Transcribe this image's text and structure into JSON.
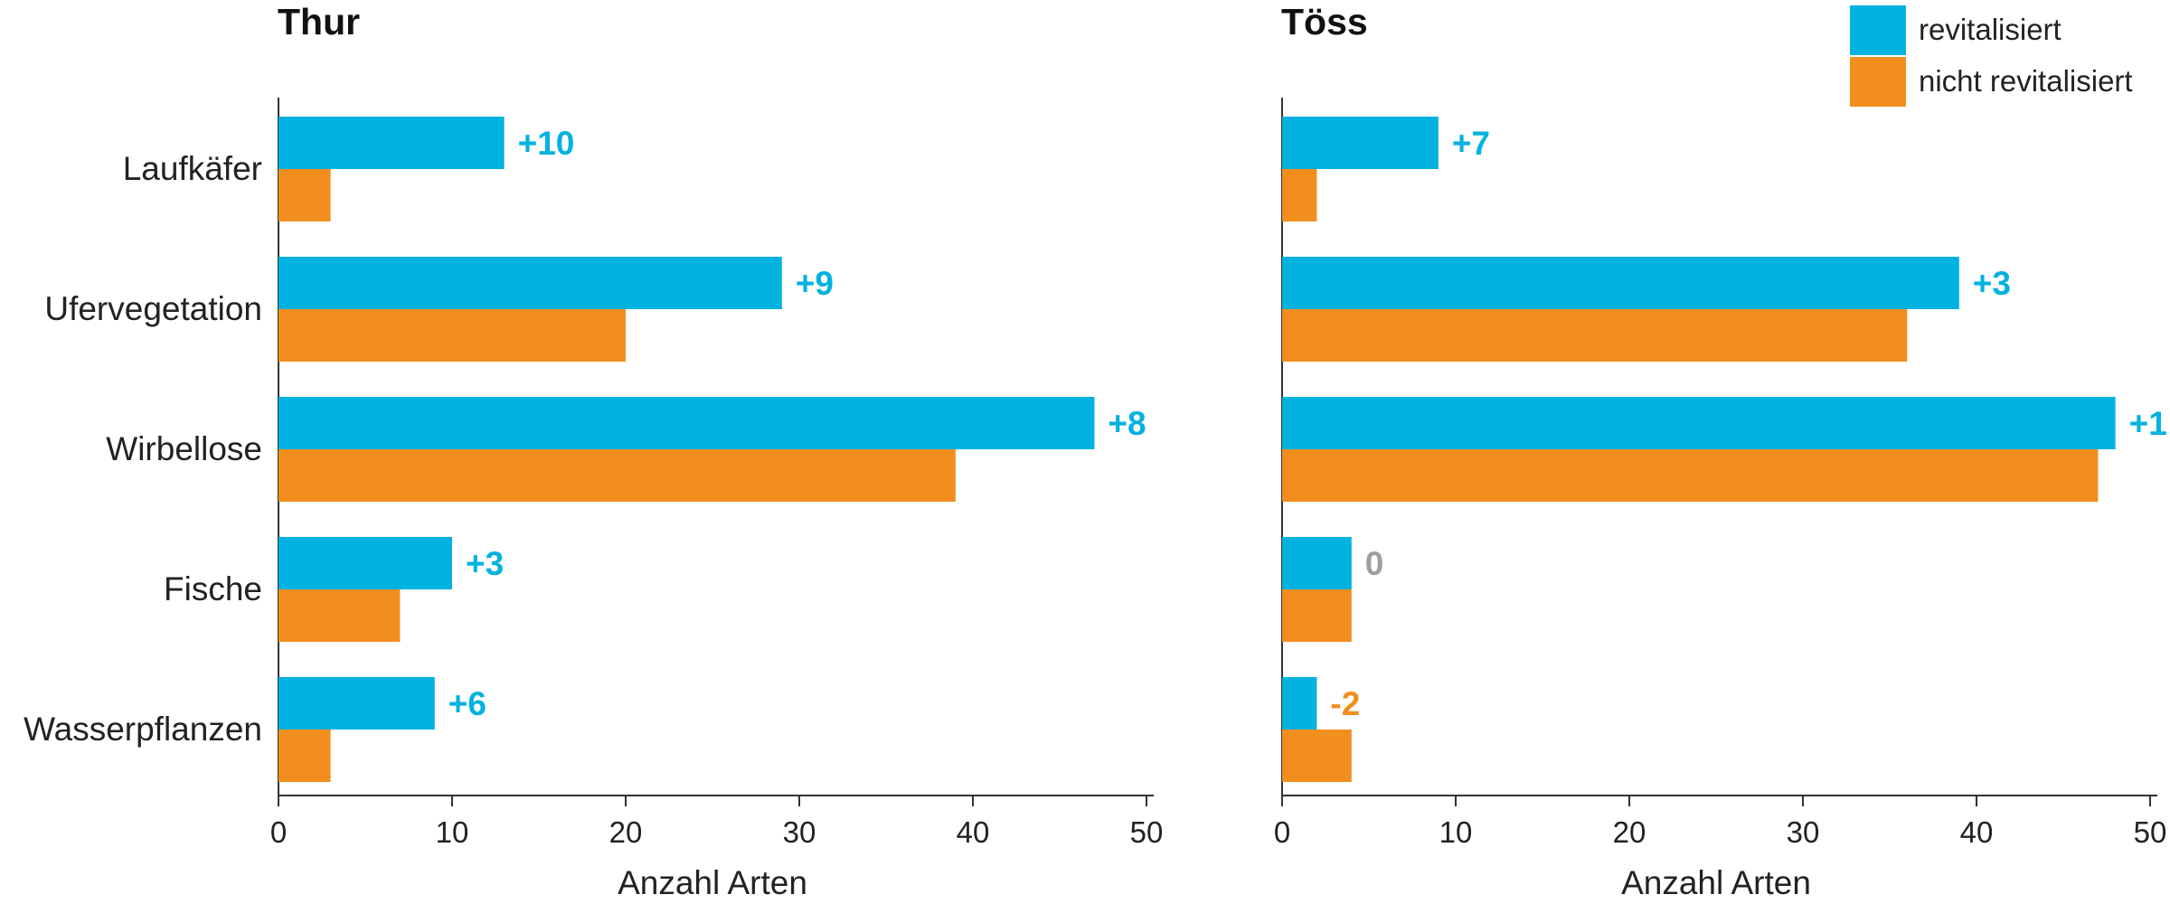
{
  "chart_data": [
    {
      "type": "bar",
      "orientation": "horizontal",
      "title": "Thur",
      "categories": [
        "Laufkäfer",
        "Ufervegetation",
        "Wirbellose",
        "Fische",
        "Wasserpflanzen"
      ],
      "series": [
        {
          "name": "revitalisiert",
          "values": [
            13,
            29,
            47,
            10,
            9
          ]
        },
        {
          "name": "nicht revitalisiert",
          "values": [
            3,
            20,
            39,
            7,
            3
          ]
        }
      ],
      "annotations": [
        "+10",
        "+9",
        "+8",
        "+3",
        "+6"
      ],
      "xlabel": "Anzahl Arten",
      "xlim": [
        0,
        50
      ],
      "xticks": [
        "0",
        "10",
        "20",
        "30",
        "40",
        "50"
      ]
    },
    {
      "type": "bar",
      "orientation": "horizontal",
      "title": "Töss",
      "categories": [
        "Laufkäfer",
        "Ufervegetation",
        "Wirbellose",
        "Fische",
        "Wasserpflanzen"
      ],
      "series": [
        {
          "name": "revitalisiert",
          "values": [
            9,
            39,
            48,
            4,
            2
          ]
        },
        {
          "name": "nicht revitalisiert",
          "values": [
            2,
            36,
            47,
            4,
            4
          ]
        }
      ],
      "annotations": [
        "+7",
        "+3",
        "+1",
        "0",
        "-2"
      ],
      "xlabel": "Anzahl Arten",
      "xlim": [
        0,
        50
      ],
      "xticks": [
        "0",
        "10",
        "20",
        "30",
        "40",
        "50"
      ]
    }
  ],
  "legend": {
    "position": "top-right",
    "items": [
      {
        "label": "revitalisiert",
        "color": "#00B2E0"
      },
      {
        "label": "nicht revitalisiert",
        "color": "#F28E1E"
      }
    ]
  },
  "colors": {
    "revitalisiert": "#00B2E0",
    "nicht_revitalisiert": "#F28E1E",
    "zero": "#9E9E9E",
    "axis": "#333333"
  }
}
